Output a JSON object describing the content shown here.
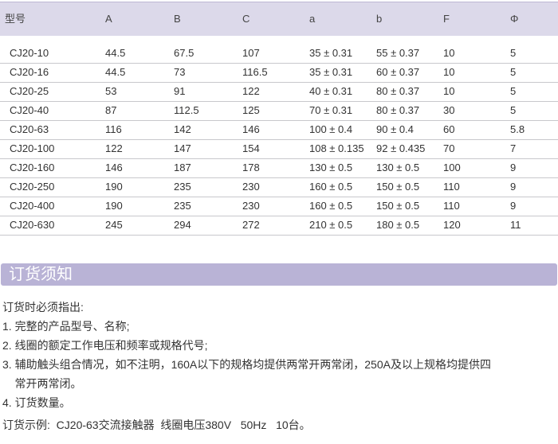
{
  "table": {
    "headers": [
      "型号",
      "A",
      "B",
      "C",
      "a",
      "b",
      "F",
      "Φ"
    ],
    "rows": [
      [
        "CJ20-10",
        "44.5",
        "67.5",
        "107",
        "35 ± 0.31",
        "55 ± 0.37",
        "10",
        "5"
      ],
      [
        "CJ20-16",
        "44.5",
        "73",
        "116.5",
        "35 ± 0.31",
        "60 ± 0.37",
        "10",
        "5"
      ],
      [
        "CJ20-25",
        "53",
        "91",
        "122",
        "40 ± 0.31",
        "80 ± 0.37",
        "10",
        "5"
      ],
      [
        "CJ20-40",
        "87",
        "112.5",
        "125",
        "70 ± 0.31",
        "80 ± 0.37",
        "30",
        "5"
      ],
      [
        "CJ20-63",
        "116",
        "142",
        "146",
        "100 ± 0.4",
        "90 ± 0.4",
        "60",
        "5.8"
      ],
      [
        "CJ20-100",
        "122",
        "147",
        "154",
        "108 ± 0.135",
        "92 ± 0.435",
        "70",
        "7"
      ],
      [
        "CJ20-160",
        "146",
        "187",
        "178",
        "130 ± 0.5",
        "130 ± 0.5",
        "100",
        "9"
      ],
      [
        "CJ20-250",
        "190",
        "235",
        "230",
        "160 ± 0.5",
        "150 ± 0.5",
        "110",
        "9"
      ],
      [
        "CJ20-400",
        "190",
        "235",
        "230",
        "160 ± 0.5",
        "150 ± 0.5",
        "110",
        "9"
      ],
      [
        "CJ20-630",
        "245",
        "294",
        "272",
        "210 ± 0.5",
        "180 ± 0.5",
        "120",
        "11"
      ]
    ]
  },
  "section": {
    "title": "订货须知"
  },
  "notes": [
    "订货时必须指出:",
    "1. 完整的产品型号、名称;",
    "2. 线圈的额定工作电压和频率或规格代号;",
    "3. 辅助触头组合情况，如不注明，160A以下的规格均提供两常开两常闭，250A及以上规格均提供四",
    "    常开两常闭。",
    "4. 订货数量。",
    "订货示例:  CJ20-63交流接触器  线圈电压380V   50Hz   10台。"
  ],
  "colors": {
    "header_bg": "#dcd9ea",
    "section_bar": "#b9b3d6"
  }
}
